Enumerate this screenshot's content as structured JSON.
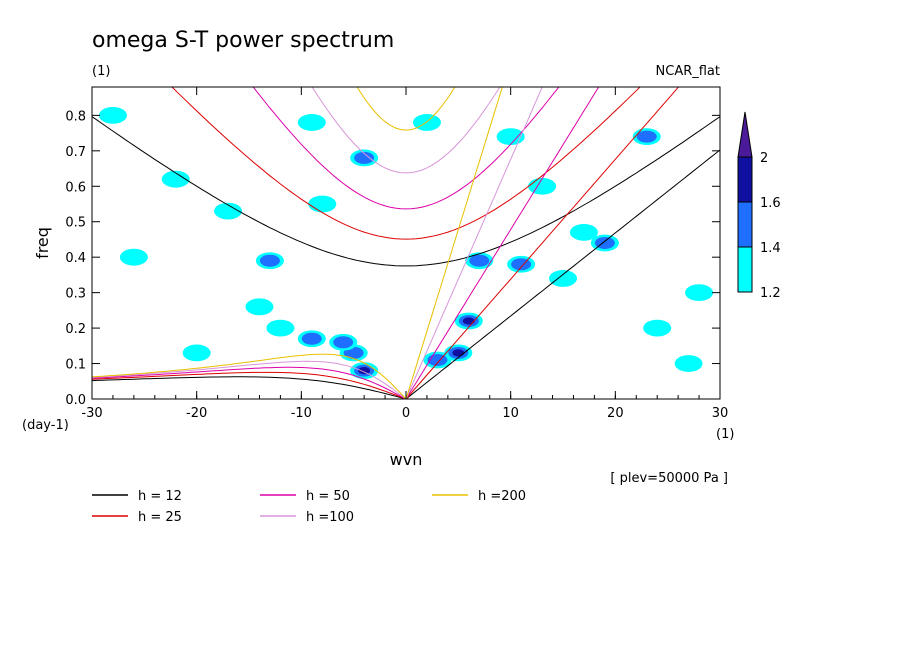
{
  "chart_data": {
    "type": "contour",
    "title": "omega S-T power spectrum",
    "subtitle_left": "(1)",
    "subtitle_right": "NCAR_flat",
    "xlabel": "wvn",
    "ylabel": "freq",
    "x_unit": "(1)",
    "y_unit": "(day-1)",
    "note": "[ plev=50000 Pa ]",
    "xlim": [
      -30,
      30
    ],
    "ylim": [
      0,
      0.88
    ],
    "x_ticks": [
      "-30",
      "-20",
      "-10",
      "0",
      "10",
      "20",
      "30"
    ],
    "y_ticks": [
      "0.0",
      "0.1",
      "0.2",
      "0.3",
      "0.4",
      "0.5",
      "0.6",
      "0.7",
      "0.8"
    ],
    "colorbar": {
      "levels": [
        "1.2",
        "1.4",
        "1.6",
        "2"
      ],
      "colors": [
        "#00ffff",
        "#1e6fff",
        "#1010a0",
        "#4b1a9a"
      ]
    },
    "dispersion_series": [
      {
        "name": "h = 12",
        "h": 12,
        "color": "#000000"
      },
      {
        "name": "h = 25",
        "h": 25,
        "color": "#dd0000"
      },
      {
        "name": "h = 50",
        "h": 50,
        "color": "#dd00aa"
      },
      {
        "name": "h =100",
        "h": 100,
        "color": "#d995d9"
      },
      {
        "name": "h =200",
        "h": 200,
        "color": "#e8c000"
      }
    ],
    "power_blobs": [
      {
        "x": -4,
        "y": 0.08,
        "level": 3
      },
      {
        "x": -5,
        "y": 0.13,
        "level": 2
      },
      {
        "x": -12,
        "y": 0.2,
        "level": 1
      },
      {
        "x": -14,
        "y": 0.26,
        "level": 1
      },
      {
        "x": -13,
        "y": 0.39,
        "level": 2
      },
      {
        "x": -9,
        "y": 0.17,
        "level": 2
      },
      {
        "x": -6,
        "y": 0.16,
        "level": 2
      },
      {
        "x": 3,
        "y": 0.11,
        "level": 2
      },
      {
        "x": 5,
        "y": 0.13,
        "level": 3
      },
      {
        "x": 6,
        "y": 0.22,
        "level": 3
      },
      {
        "x": 7,
        "y": 0.39,
        "level": 2
      },
      {
        "x": 11,
        "y": 0.38,
        "level": 2
      },
      {
        "x": 10,
        "y": 0.74,
        "level": 1
      },
      {
        "x": -9,
        "y": 0.78,
        "level": 1
      },
      {
        "x": 17,
        "y": 0.47,
        "level": 1
      },
      {
        "x": 19,
        "y": 0.44,
        "level": 2
      },
      {
        "x": 23,
        "y": 0.74,
        "level": 2
      },
      {
        "x": -4,
        "y": 0.68,
        "level": 2
      },
      {
        "x": -22,
        "y": 0.62,
        "level": 1
      },
      {
        "x": -28,
        "y": 0.8,
        "level": 1
      },
      {
        "x": -8,
        "y": 0.55,
        "level": 1
      },
      {
        "x": 2,
        "y": 0.78,
        "level": 1
      },
      {
        "x": -20,
        "y": 0.13,
        "level": 1
      },
      {
        "x": 24,
        "y": 0.2,
        "level": 1
      },
      {
        "x": 27,
        "y": 0.1,
        "level": 1
      },
      {
        "x": -26,
        "y": 0.4,
        "level": 1
      },
      {
        "x": 13,
        "y": 0.6,
        "level": 1
      },
      {
        "x": 15,
        "y": 0.34,
        "level": 1
      },
      {
        "x": -17,
        "y": 0.53,
        "level": 1
      },
      {
        "x": 28,
        "y": 0.3,
        "level": 1
      }
    ]
  }
}
